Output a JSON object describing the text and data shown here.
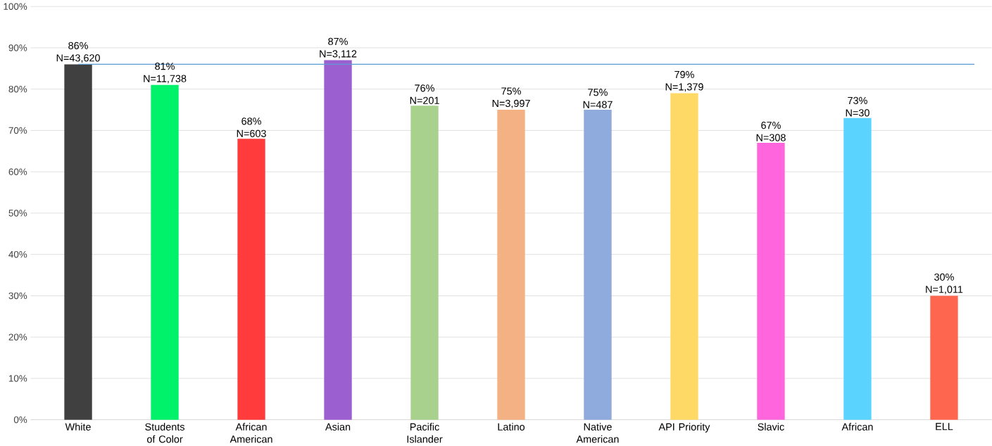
{
  "chart_data": {
    "type": "bar",
    "categories": [
      "White",
      "Students of Color",
      "African American",
      "Asian",
      "Pacific Islander",
      "Latino",
      "Native American",
      "API Priority",
      "Slavic",
      "African",
      "ELL"
    ],
    "values": [
      86,
      81,
      68,
      87,
      76,
      75,
      75,
      79,
      67,
      73,
      30
    ],
    "colors": [
      "#404040",
      "#00f26a",
      "#ff3b3b",
      "#9b5fd0",
      "#a9d18e",
      "#f4b183",
      "#8faadc",
      "#ffd966",
      "#ff66dd",
      "#5bd3ff",
      "#ff6650"
    ],
    "value_labels": [
      "86%",
      "81%",
      "68%",
      "87%",
      "76%",
      "75%",
      "75%",
      "79%",
      "67%",
      "73%",
      "30%"
    ],
    "annotations": [
      "N=43,620",
      "N=11,738",
      "N=603",
      "N=3,112",
      "N=201",
      "N=3,997",
      "N=487",
      "N=1,379",
      "N=308",
      "N=30",
      "N=1,011"
    ],
    "ref_lines": [
      {
        "axis": "y",
        "value": 86,
        "color": "#5b9bd5"
      }
    ],
    "ylim": [
      0,
      100
    ],
    "yticks": [
      {
        "value": 0,
        "label": "0%"
      },
      {
        "value": 10,
        "label": "10%"
      },
      {
        "value": 20,
        "label": "20%"
      },
      {
        "value": 30,
        "label": "30%"
      },
      {
        "value": 40,
        "label": "40%"
      },
      {
        "value": 50,
        "label": "50%"
      },
      {
        "value": 60,
        "label": "60%"
      },
      {
        "value": 70,
        "label": "70%"
      },
      {
        "value": 80,
        "label": "80%"
      },
      {
        "value": 90,
        "label": "90%"
      },
      {
        "value": 100,
        "label": "100%"
      }
    ],
    "grid": "y"
  }
}
